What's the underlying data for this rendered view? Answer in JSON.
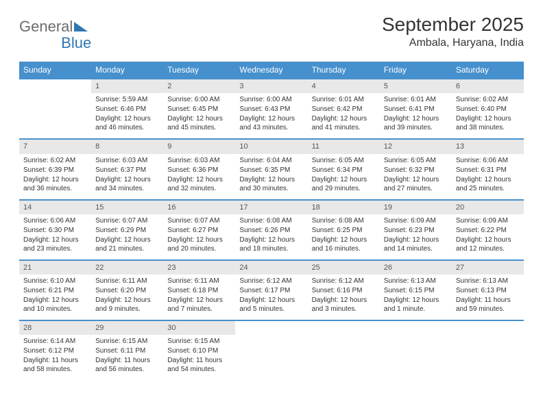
{
  "logo": {
    "textA": "General",
    "textB": "Blue"
  },
  "title": "September 2025",
  "location": "Ambala, Haryana, India",
  "weekdays": [
    "Sunday",
    "Monday",
    "Tuesday",
    "Wednesday",
    "Thursday",
    "Friday",
    "Saturday"
  ],
  "style": {
    "header_bg": "#4690cd",
    "header_fg": "#ffffff",
    "daynum_bg": "#e8e8e8",
    "row_border": "#4690cd",
    "page_bg": "#ffffff",
    "text_color": "#333333",
    "logo_gray": "#6b6b6b",
    "logo_blue": "#2f77b3",
    "title_fontsize": 28,
    "location_fontsize": 16,
    "th_fontsize": 12,
    "cell_fontsize": 10
  },
  "weeks": [
    [
      {
        "n": "",
        "sr": "",
        "ss": "",
        "dl": ""
      },
      {
        "n": "1",
        "sr": "Sunrise: 5:59 AM",
        "ss": "Sunset: 6:46 PM",
        "dl": "Daylight: 12 hours and 46 minutes."
      },
      {
        "n": "2",
        "sr": "Sunrise: 6:00 AM",
        "ss": "Sunset: 6:45 PM",
        "dl": "Daylight: 12 hours and 45 minutes."
      },
      {
        "n": "3",
        "sr": "Sunrise: 6:00 AM",
        "ss": "Sunset: 6:43 PM",
        "dl": "Daylight: 12 hours and 43 minutes."
      },
      {
        "n": "4",
        "sr": "Sunrise: 6:01 AM",
        "ss": "Sunset: 6:42 PM",
        "dl": "Daylight: 12 hours and 41 minutes."
      },
      {
        "n": "5",
        "sr": "Sunrise: 6:01 AM",
        "ss": "Sunset: 6:41 PM",
        "dl": "Daylight: 12 hours and 39 minutes."
      },
      {
        "n": "6",
        "sr": "Sunrise: 6:02 AM",
        "ss": "Sunset: 6:40 PM",
        "dl": "Daylight: 12 hours and 38 minutes."
      }
    ],
    [
      {
        "n": "7",
        "sr": "Sunrise: 6:02 AM",
        "ss": "Sunset: 6:39 PM",
        "dl": "Daylight: 12 hours and 36 minutes."
      },
      {
        "n": "8",
        "sr": "Sunrise: 6:03 AM",
        "ss": "Sunset: 6:37 PM",
        "dl": "Daylight: 12 hours and 34 minutes."
      },
      {
        "n": "9",
        "sr": "Sunrise: 6:03 AM",
        "ss": "Sunset: 6:36 PM",
        "dl": "Daylight: 12 hours and 32 minutes."
      },
      {
        "n": "10",
        "sr": "Sunrise: 6:04 AM",
        "ss": "Sunset: 6:35 PM",
        "dl": "Daylight: 12 hours and 30 minutes."
      },
      {
        "n": "11",
        "sr": "Sunrise: 6:05 AM",
        "ss": "Sunset: 6:34 PM",
        "dl": "Daylight: 12 hours and 29 minutes."
      },
      {
        "n": "12",
        "sr": "Sunrise: 6:05 AM",
        "ss": "Sunset: 6:32 PM",
        "dl": "Daylight: 12 hours and 27 minutes."
      },
      {
        "n": "13",
        "sr": "Sunrise: 6:06 AM",
        "ss": "Sunset: 6:31 PM",
        "dl": "Daylight: 12 hours and 25 minutes."
      }
    ],
    [
      {
        "n": "14",
        "sr": "Sunrise: 6:06 AM",
        "ss": "Sunset: 6:30 PM",
        "dl": "Daylight: 12 hours and 23 minutes."
      },
      {
        "n": "15",
        "sr": "Sunrise: 6:07 AM",
        "ss": "Sunset: 6:29 PM",
        "dl": "Daylight: 12 hours and 21 minutes."
      },
      {
        "n": "16",
        "sr": "Sunrise: 6:07 AM",
        "ss": "Sunset: 6:27 PM",
        "dl": "Daylight: 12 hours and 20 minutes."
      },
      {
        "n": "17",
        "sr": "Sunrise: 6:08 AM",
        "ss": "Sunset: 6:26 PM",
        "dl": "Daylight: 12 hours and 18 minutes."
      },
      {
        "n": "18",
        "sr": "Sunrise: 6:08 AM",
        "ss": "Sunset: 6:25 PM",
        "dl": "Daylight: 12 hours and 16 minutes."
      },
      {
        "n": "19",
        "sr": "Sunrise: 6:09 AM",
        "ss": "Sunset: 6:23 PM",
        "dl": "Daylight: 12 hours and 14 minutes."
      },
      {
        "n": "20",
        "sr": "Sunrise: 6:09 AM",
        "ss": "Sunset: 6:22 PM",
        "dl": "Daylight: 12 hours and 12 minutes."
      }
    ],
    [
      {
        "n": "21",
        "sr": "Sunrise: 6:10 AM",
        "ss": "Sunset: 6:21 PM",
        "dl": "Daylight: 12 hours and 10 minutes."
      },
      {
        "n": "22",
        "sr": "Sunrise: 6:11 AM",
        "ss": "Sunset: 6:20 PM",
        "dl": "Daylight: 12 hours and 9 minutes."
      },
      {
        "n": "23",
        "sr": "Sunrise: 6:11 AM",
        "ss": "Sunset: 6:18 PM",
        "dl": "Daylight: 12 hours and 7 minutes."
      },
      {
        "n": "24",
        "sr": "Sunrise: 6:12 AM",
        "ss": "Sunset: 6:17 PM",
        "dl": "Daylight: 12 hours and 5 minutes."
      },
      {
        "n": "25",
        "sr": "Sunrise: 6:12 AM",
        "ss": "Sunset: 6:16 PM",
        "dl": "Daylight: 12 hours and 3 minutes."
      },
      {
        "n": "26",
        "sr": "Sunrise: 6:13 AM",
        "ss": "Sunset: 6:15 PM",
        "dl": "Daylight: 12 hours and 1 minute."
      },
      {
        "n": "27",
        "sr": "Sunrise: 6:13 AM",
        "ss": "Sunset: 6:13 PM",
        "dl": "Daylight: 11 hours and 59 minutes."
      }
    ],
    [
      {
        "n": "28",
        "sr": "Sunrise: 6:14 AM",
        "ss": "Sunset: 6:12 PM",
        "dl": "Daylight: 11 hours and 58 minutes."
      },
      {
        "n": "29",
        "sr": "Sunrise: 6:15 AM",
        "ss": "Sunset: 6:11 PM",
        "dl": "Daylight: 11 hours and 56 minutes."
      },
      {
        "n": "30",
        "sr": "Sunrise: 6:15 AM",
        "ss": "Sunset: 6:10 PM",
        "dl": "Daylight: 11 hours and 54 minutes."
      },
      {
        "n": "",
        "sr": "",
        "ss": "",
        "dl": ""
      },
      {
        "n": "",
        "sr": "",
        "ss": "",
        "dl": ""
      },
      {
        "n": "",
        "sr": "",
        "ss": "",
        "dl": ""
      },
      {
        "n": "",
        "sr": "",
        "ss": "",
        "dl": ""
      }
    ]
  ]
}
